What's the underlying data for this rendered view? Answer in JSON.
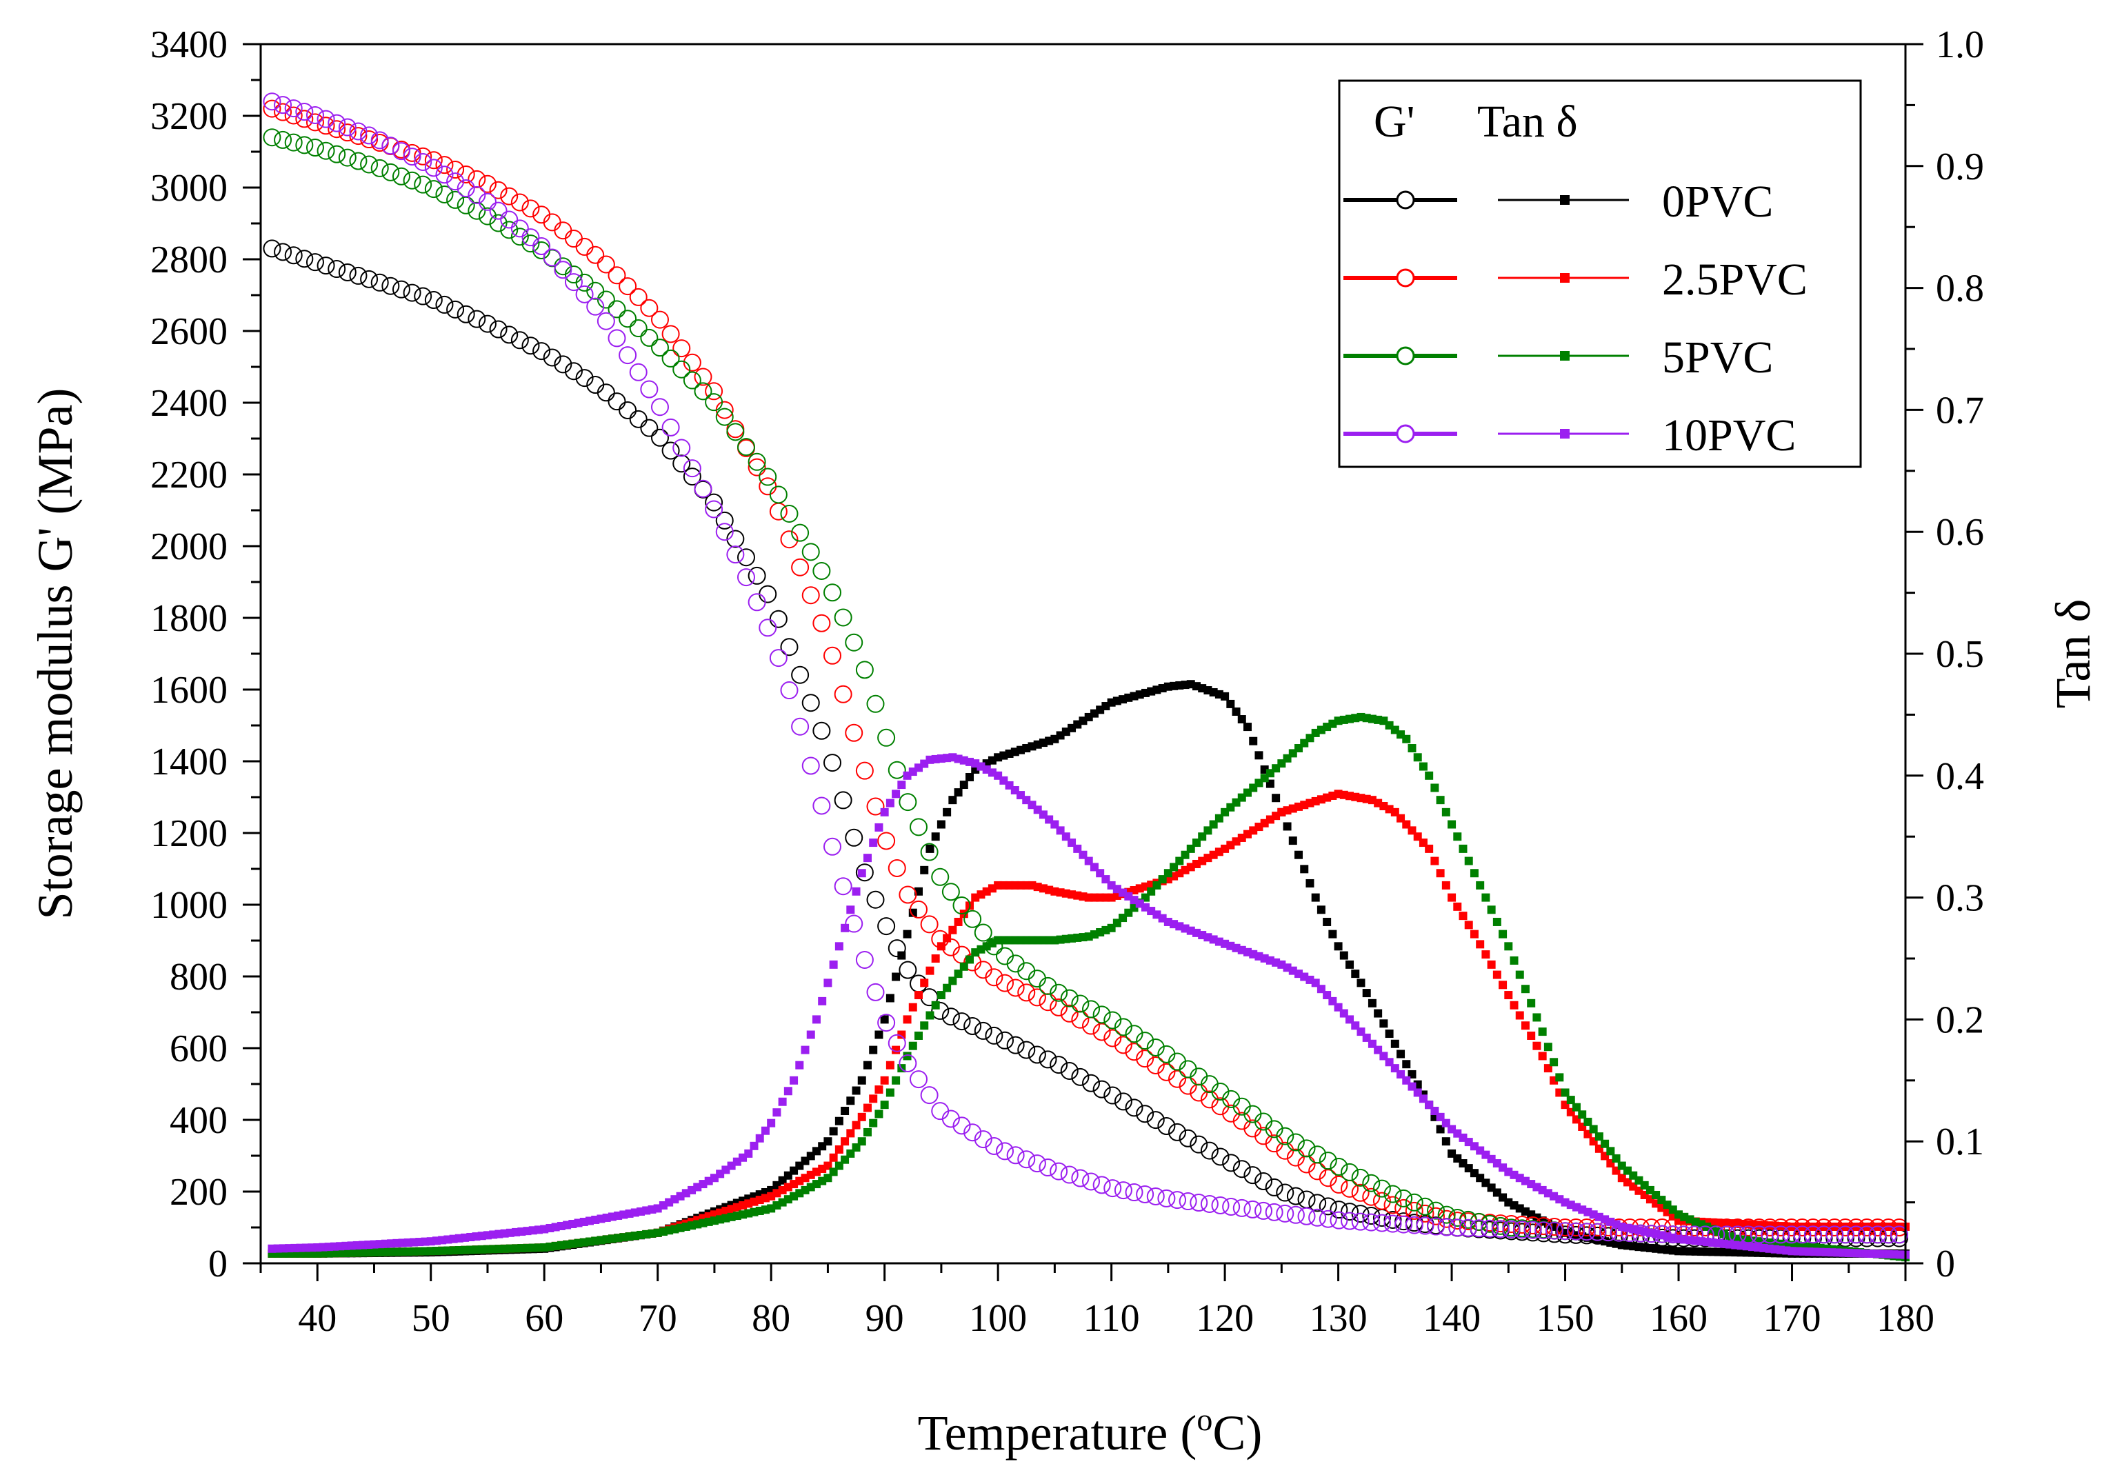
{
  "chart_data": {
    "type": "line",
    "xlabel": "Temperature (°C)",
    "xlabel_main": "Temperature (",
    "xlabel_sup": "o",
    "xlabel_unit": "C)",
    "ylabel": "Storage modulus G' (MPa)",
    "y2label": "Tan δ",
    "xlim": [
      35,
      180
    ],
    "ylim": [
      0,
      3400
    ],
    "y2lim": [
      0,
      1.0
    ],
    "x_ticks": [
      40,
      50,
      60,
      70,
      80,
      90,
      100,
      110,
      120,
      130,
      140,
      150,
      160,
      170,
      180
    ],
    "y_ticks": [
      0,
      200,
      400,
      600,
      800,
      1000,
      1200,
      1400,
      1600,
      1800,
      2000,
      2200,
      2400,
      2600,
      2800,
      3000,
      3200,
      3400
    ],
    "y2_ticks": [
      "0",
      "0.1",
      "0.2",
      "0.3",
      "0.4",
      "0.5",
      "0.6",
      "0.7",
      "0.8",
      "0.9",
      "1.0"
    ],
    "grid": false,
    "legend": {
      "placement": "top-right",
      "header_left": "G'",
      "header_right": "Tan δ",
      "entries": [
        "0PVC",
        "2.5PVC",
        "5PVC",
        "10PVC"
      ]
    },
    "colors": {
      "0PVC": "#000000",
      "2.5PVC": "#ff0000",
      "5PVC": "#008000",
      "10PVC": "#9b1ff0"
    },
    "series": [
      {
        "name": "0PVC",
        "quantity": "G'",
        "axis": "left",
        "marker": "open-circle",
        "x": [
          36,
          40,
          45,
          50,
          55,
          60,
          65,
          70,
          75,
          80,
          85,
          88,
          90,
          92,
          95,
          100,
          105,
          110,
          115,
          120,
          125,
          130,
          135,
          140,
          145,
          150,
          160,
          170,
          180
        ],
        "y": [
          2830,
          2790,
          2740,
          2690,
          2620,
          2540,
          2440,
          2310,
          2120,
          1850,
          1440,
          1110,
          950,
          820,
          700,
          630,
          560,
          470,
          380,
          290,
          200,
          150,
          120,
          100,
          90,
          80,
          70,
          70,
          70
        ]
      },
      {
        "name": "0PVC",
        "quantity": "Tan δ",
        "axis": "right",
        "marker": "filled-square",
        "x": [
          36,
          40,
          50,
          60,
          70,
          80,
          85,
          88,
          90,
          92,
          94,
          96,
          98,
          100,
          105,
          110,
          115,
          117,
          120,
          122,
          125,
          128,
          130,
          132,
          135,
          138,
          140,
          145,
          150,
          155,
          160,
          170,
          180
        ],
        "y": [
          0.008,
          0.008,
          0.009,
          0.012,
          0.025,
          0.06,
          0.1,
          0.15,
          0.2,
          0.27,
          0.34,
          0.38,
          0.405,
          0.415,
          0.43,
          0.46,
          0.473,
          0.475,
          0.465,
          0.44,
          0.37,
          0.3,
          0.26,
          0.23,
          0.18,
          0.13,
          0.09,
          0.05,
          0.025,
          0.015,
          0.01,
          0.008,
          0.008
        ]
      },
      {
        "name": "2.5PVC",
        "quantity": "G'",
        "axis": "left",
        "marker": "open-circle",
        "x": [
          36,
          40,
          45,
          50,
          55,
          60,
          65,
          70,
          75,
          80,
          85,
          88,
          90,
          92,
          95,
          100,
          105,
          110,
          115,
          120,
          125,
          130,
          135,
          140,
          145,
          150,
          160,
          170,
          180
        ],
        "y": [
          3220,
          3180,
          3130,
          3080,
          3010,
          2920,
          2800,
          2640,
          2430,
          2150,
          1740,
          1400,
          1190,
          1030,
          900,
          790,
          720,
          630,
          530,
          430,
          320,
          220,
          160,
          120,
          110,
          100,
          100,
          100,
          100
        ]
      },
      {
        "name": "2.5PVC",
        "quantity": "Tan δ",
        "axis": "right",
        "marker": "filled-square",
        "x": [
          36,
          40,
          50,
          60,
          70,
          80,
          85,
          88,
          90,
          92,
          95,
          98,
          100,
          103,
          105,
          108,
          110,
          115,
          120,
          125,
          130,
          133,
          135,
          138,
          140,
          142,
          145,
          148,
          150,
          155,
          160,
          170,
          180
        ],
        "y": [
          0.008,
          0.008,
          0.01,
          0.013,
          0.025,
          0.055,
          0.08,
          0.12,
          0.15,
          0.2,
          0.26,
          0.3,
          0.31,
          0.31,
          0.305,
          0.3,
          0.3,
          0.315,
          0.34,
          0.37,
          0.385,
          0.38,
          0.37,
          0.34,
          0.3,
          0.27,
          0.22,
          0.17,
          0.13,
          0.07,
          0.035,
          0.03,
          0.03
        ]
      },
      {
        "name": "5PVC",
        "quantity": "G'",
        "axis": "left",
        "marker": "open-circle",
        "x": [
          36,
          40,
          45,
          50,
          55,
          60,
          65,
          70,
          75,
          80,
          85,
          88,
          90,
          92,
          95,
          100,
          105,
          110,
          115,
          120,
          125,
          130,
          135,
          140,
          145,
          150,
          160,
          170,
          180
        ],
        "y": [
          3140,
          3110,
          3060,
          3000,
          2920,
          2820,
          2700,
          2560,
          2400,
          2180,
          1900,
          1680,
          1480,
          1290,
          1070,
          870,
          760,
          680,
          580,
          470,
          360,
          270,
          190,
          130,
          100,
          90,
          80,
          80,
          80
        ]
      },
      {
        "name": "5PVC",
        "quantity": "Tan δ",
        "axis": "right",
        "marker": "filled-square",
        "x": [
          36,
          40,
          50,
          60,
          70,
          80,
          85,
          88,
          90,
          92,
          95,
          98,
          100,
          103,
          105,
          108,
          110,
          113,
          115,
          118,
          120,
          125,
          128,
          130,
          132,
          134,
          136,
          138,
          140,
          142,
          145,
          148,
          150,
          155,
          160,
          165,
          170,
          180
        ],
        "y": [
          0.008,
          0.008,
          0.01,
          0.013,
          0.025,
          0.045,
          0.07,
          0.1,
          0.13,
          0.17,
          0.22,
          0.255,
          0.265,
          0.265,
          0.265,
          0.268,
          0.275,
          0.3,
          0.32,
          0.35,
          0.37,
          0.41,
          0.435,
          0.445,
          0.448,
          0.445,
          0.43,
          0.4,
          0.36,
          0.32,
          0.26,
          0.19,
          0.14,
          0.08,
          0.04,
          0.02,
          0.015,
          0.005
        ]
      },
      {
        "name": "10PVC",
        "quantity": "G'",
        "axis": "left",
        "marker": "open-circle",
        "x": [
          36,
          40,
          45,
          50,
          55,
          60,
          65,
          70,
          75,
          78,
          80,
          82,
          84,
          86,
          88,
          90,
          92,
          95,
          100,
          105,
          110,
          115,
          120,
          125,
          130,
          140,
          150,
          160,
          170,
          180
        ],
        "y": [
          3240,
          3200,
          3140,
          3060,
          2960,
          2830,
          2650,
          2400,
          2100,
          1900,
          1750,
          1560,
          1330,
          1090,
          870,
          680,
          560,
          420,
          320,
          260,
          210,
          180,
          160,
          140,
          120,
          100,
          90,
          80,
          80,
          80
        ]
      },
      {
        "name": "10PVC",
        "quantity": "Tan δ",
        "axis": "right",
        "marker": "filled-square",
        "x": [
          36,
          40,
          50,
          60,
          70,
          75,
          78,
          80,
          82,
          84,
          86,
          88,
          90,
          92,
          94,
          96,
          98,
          100,
          105,
          110,
          115,
          120,
          125,
          128,
          130,
          133,
          135,
          138,
          140,
          145,
          150,
          155,
          160,
          170,
          180
        ],
        "y": [
          0.012,
          0.013,
          0.018,
          0.028,
          0.045,
          0.07,
          0.09,
          0.115,
          0.15,
          0.2,
          0.26,
          0.32,
          0.37,
          0.4,
          0.413,
          0.415,
          0.41,
          0.4,
          0.36,
          0.31,
          0.28,
          0.262,
          0.245,
          0.23,
          0.21,
          0.18,
          0.16,
          0.13,
          0.11,
          0.075,
          0.05,
          0.03,
          0.02,
          0.01,
          0.007
        ]
      }
    ]
  }
}
